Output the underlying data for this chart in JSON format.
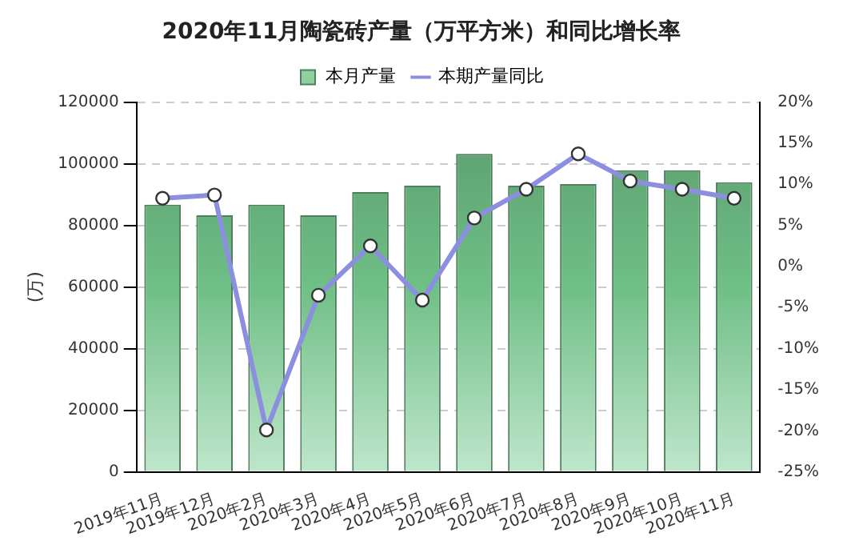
{
  "chart_data": {
    "type": "bar",
    "title": "2020年11月陶瓷砖产量（万平方米）和同比增长率",
    "ylabel": "(万)",
    "categories": [
      "2019年11月",
      "2019年12月",
      "2020年2月",
      "2020年3月",
      "2020年4月",
      "2020年5月",
      "2020年6月",
      "2020年7月",
      "2020年8月",
      "2020年9月",
      "2020年10月",
      "2020年11月"
    ],
    "series": [
      {
        "name": "本月产量",
        "color": "#6fbf86",
        "values": [
          86700,
          83300,
          86700,
          83300,
          90800,
          92900,
          103200,
          92900,
          93400,
          97900,
          97900,
          94000
        ]
      },
      {
        "name": "本期产量同比",
        "type": "line",
        "axis": "y2",
        "color": "#8c8fe0",
        "values": [
          8.3,
          8.7,
          -19.9,
          -3.5,
          2.5,
          -4.1,
          5.9,
          9.4,
          13.7,
          10.4,
          9.4,
          8.3
        ]
      }
    ],
    "ylim": [
      0,
      120000
    ],
    "yticks": [
      0,
      20000,
      40000,
      60000,
      80000,
      100000,
      120000
    ],
    "y2lim": [
      -25,
      20
    ],
    "y2ticks": [
      {
        "value": -25,
        "label": "-25%"
      },
      {
        "value": -20,
        "label": "-20%"
      },
      {
        "value": -15,
        "label": "-15%"
      },
      {
        "value": -10,
        "label": "-10%"
      },
      {
        "value": -5,
        "label": "-5%"
      },
      {
        "value": 0,
        "label": "0%"
      },
      {
        "value": 5,
        "label": "5%"
      },
      {
        "value": 10,
        "label": "10%"
      },
      {
        "value": 15,
        "label": "15%"
      },
      {
        "value": 20,
        "label": "20%"
      }
    ],
    "grid": "y",
    "legend": "top",
    "marker": "circle",
    "line_style": "solid"
  }
}
